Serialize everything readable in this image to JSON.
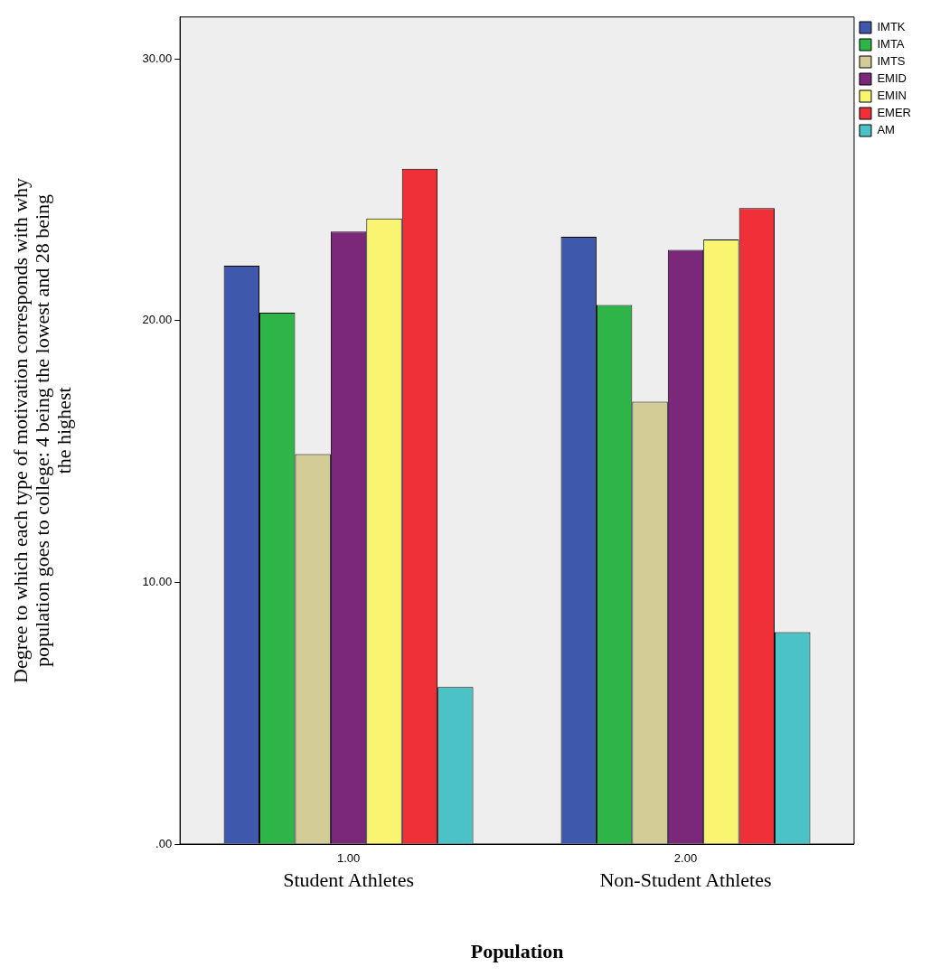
{
  "chart_data": {
    "type": "bar",
    "categories": [
      "1.00",
      "2.00"
    ],
    "xlabel": "Population",
    "ylabel": "Degree to which each type of motivation corresponds with why population goes to college: 4 being the lowest and 28 being the highest",
    "annotations": [
      "Student Athletes",
      "Non-Student Athletes"
    ],
    "series": [
      {
        "name": "IMTK",
        "color": "#3e58ac",
        "values": [
          22.1,
          23.2
        ]
      },
      {
        "name": "IMTA",
        "color": "#2eb548",
        "values": [
          20.3,
          20.6
        ]
      },
      {
        "name": "IMTS",
        "color": "#d4cc96",
        "values": [
          14.9,
          16.9
        ]
      },
      {
        "name": "EMID",
        "color": "#7b287b",
        "values": [
          23.4,
          22.7
        ]
      },
      {
        "name": "EMIN",
        "color": "#f9f570",
        "values": [
          23.9,
          23.1
        ]
      },
      {
        "name": "EMER",
        "color": "#ef3038",
        "values": [
          25.8,
          24.3
        ]
      },
      {
        "name": "AM",
        "color": "#4ac2c6",
        "values": [
          6.0,
          8.1
        ]
      }
    ],
    "ylim": [
      0,
      31.6
    ],
    "yticks": [
      {
        "value": 0,
        "label": ".00"
      },
      {
        "value": 10,
        "label": "10.00"
      },
      {
        "value": 20,
        "label": "20.00"
      },
      {
        "value": 30,
        "label": "30.00"
      }
    ],
    "grid": false,
    "legend": "top right"
  }
}
